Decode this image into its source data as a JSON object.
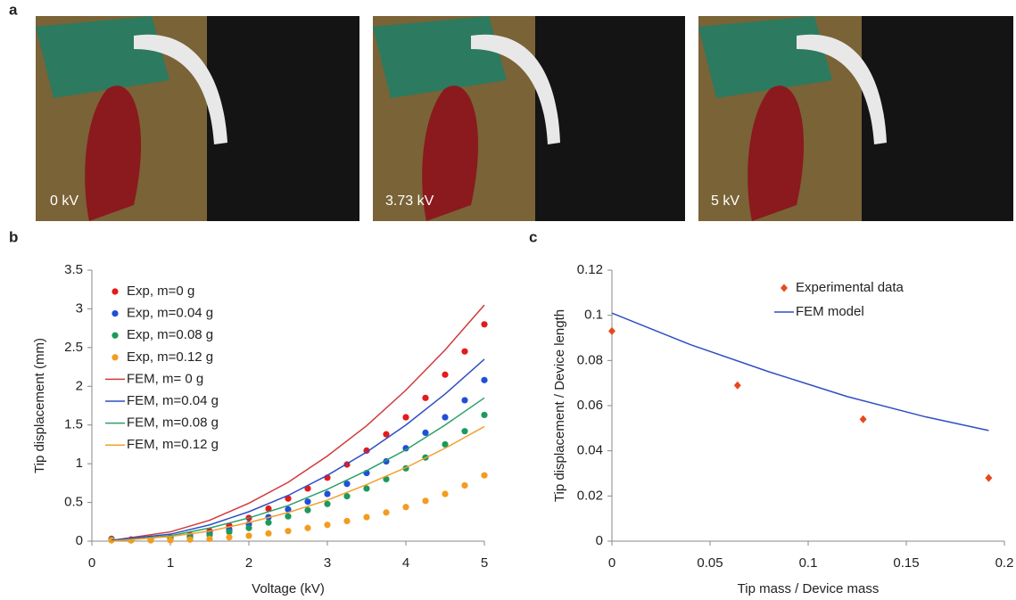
{
  "panel_a": {
    "label": "a",
    "photos": [
      "0 kV",
      "3.73 kV",
      "5 kV"
    ]
  },
  "chart_data": [
    {
      "type": "scatter",
      "label": "b",
      "xlabel": "Voltage (kV)",
      "ylabel": "Tip displacement (mm)",
      "xlim": [
        0,
        5
      ],
      "xticks": [
        0,
        1,
        2,
        3,
        4,
        5
      ],
      "ylim": [
        0,
        3.5
      ],
      "yticks": [
        0,
        0.5,
        1,
        1.5,
        2,
        2.5,
        3,
        3.5
      ],
      "legend": "upper left",
      "series": [
        {
          "name": "Exp, m=0 g",
          "type": "scatter",
          "marker": "circle",
          "color": "#e41a1c",
          "x": [
            0.25,
            0.5,
            0.75,
            1,
            1.25,
            1.5,
            1.75,
            2,
            2.25,
            2.5,
            2.75,
            3,
            3.25,
            3.5,
            3.75,
            4,
            4.25,
            4.5,
            4.75,
            5
          ],
          "values": [
            0.03,
            0.02,
            0.03,
            0.05,
            0.08,
            0.13,
            0.2,
            0.3,
            0.42,
            0.55,
            0.68,
            0.82,
            0.99,
            1.17,
            1.38,
            1.6,
            1.85,
            2.15,
            2.45,
            2.8
          ]
        },
        {
          "name": "Exp, m=0.04 g",
          "type": "scatter",
          "marker": "circle",
          "color": "#1f4fd8",
          "x": [
            0.25,
            0.5,
            0.75,
            1,
            1.25,
            1.5,
            1.75,
            2,
            2.25,
            2.5,
            2.75,
            3,
            3.25,
            3.5,
            3.75,
            4,
            4.25,
            4.5,
            4.75,
            5
          ],
          "values": [
            0.02,
            0.02,
            0.02,
            0.04,
            0.06,
            0.1,
            0.15,
            0.22,
            0.31,
            0.41,
            0.51,
            0.61,
            0.74,
            0.88,
            1.03,
            1.2,
            1.4,
            1.6,
            1.82,
            2.08
          ]
        },
        {
          "name": "Exp, m=0.08 g",
          "type": "scatter",
          "marker": "circle",
          "color": "#1a9a5c",
          "x": [
            0.25,
            0.5,
            0.75,
            1,
            1.25,
            1.5,
            1.75,
            2,
            2.25,
            2.5,
            2.75,
            3,
            3.25,
            3.5,
            3.75,
            4,
            4.25,
            4.5,
            4.75,
            5
          ],
          "values": [
            0.02,
            0.01,
            0.02,
            0.03,
            0.05,
            0.08,
            0.12,
            0.17,
            0.24,
            0.32,
            0.4,
            0.48,
            0.58,
            0.68,
            0.8,
            0.94,
            1.08,
            1.25,
            1.42,
            1.63
          ]
        },
        {
          "name": "Exp, m=0.12 g",
          "type": "scatter",
          "marker": "circle",
          "color": "#f39c1e",
          "x": [
            0.25,
            0.5,
            0.75,
            1,
            1.25,
            1.5,
            1.75,
            2,
            2.25,
            2.5,
            2.75,
            3,
            3.25,
            3.5,
            3.75,
            4,
            4.25,
            4.5,
            4.75,
            5
          ],
          "values": [
            0.01,
            0.01,
            0.01,
            0.01,
            0.02,
            0.03,
            0.05,
            0.07,
            0.1,
            0.13,
            0.17,
            0.21,
            0.26,
            0.31,
            0.37,
            0.44,
            0.52,
            0.61,
            0.72,
            0.85
          ]
        },
        {
          "name": "FEM, m= 0 g",
          "type": "line",
          "color": "#d03a3a",
          "x": [
            0.25,
            1,
            1.5,
            2,
            2.5,
            3,
            3.5,
            4,
            4.5,
            5
          ],
          "values": [
            0.01,
            0.12,
            0.27,
            0.49,
            0.76,
            1.1,
            1.49,
            1.95,
            2.47,
            3.05
          ]
        },
        {
          "name": "FEM, m=0.04 g",
          "type": "line",
          "color": "#2f4fc4",
          "x": [
            0.25,
            1,
            1.5,
            2,
            2.5,
            3,
            3.5,
            4,
            4.5,
            5
          ],
          "values": [
            0.01,
            0.09,
            0.21,
            0.38,
            0.59,
            0.85,
            1.15,
            1.5,
            1.9,
            2.35
          ]
        },
        {
          "name": "FEM, m=0.08 g",
          "type": "line",
          "color": "#2aa06a",
          "x": [
            0.25,
            1,
            1.5,
            2,
            2.5,
            3,
            3.5,
            4,
            4.5,
            5
          ],
          "values": [
            0,
            0.07,
            0.17,
            0.3,
            0.46,
            0.67,
            0.91,
            1.18,
            1.5,
            1.85
          ]
        },
        {
          "name": "FEM, m=0.12 g",
          "type": "line",
          "color": "#f0a030",
          "x": [
            0.25,
            1,
            1.5,
            2,
            2.5,
            3,
            3.5,
            4,
            4.5,
            5
          ],
          "values": [
            0,
            0.06,
            0.13,
            0.24,
            0.37,
            0.53,
            0.73,
            0.95,
            1.2,
            1.48
          ]
        }
      ]
    },
    {
      "type": "scatter",
      "label": "c",
      "xlabel": "Tip mass / Device mass",
      "ylabel": "Tip displacement / Device length",
      "xlim": [
        0,
        0.2
      ],
      "xticks": [
        0,
        0.05,
        0.1,
        0.15,
        0.2
      ],
      "ylim": [
        0,
        0.12
      ],
      "yticks": [
        0,
        0.02,
        0.04,
        0.06,
        0.08,
        0.1,
        0.12
      ],
      "legend": "upper right",
      "series": [
        {
          "name": "Experimental data",
          "type": "scatter",
          "marker": "diamond",
          "color": "#e8481c",
          "x": [
            0,
            0.064,
            0.128,
            0.192
          ],
          "values": [
            0.093,
            0.069,
            0.054,
            0.028
          ]
        },
        {
          "name": "FEM model",
          "type": "line",
          "color": "#2f4fc4",
          "x": [
            0,
            0.04,
            0.08,
            0.12,
            0.16,
            0.192
          ],
          "values": [
            0.101,
            0.087,
            0.075,
            0.064,
            0.055,
            0.049
          ]
        }
      ]
    }
  ]
}
